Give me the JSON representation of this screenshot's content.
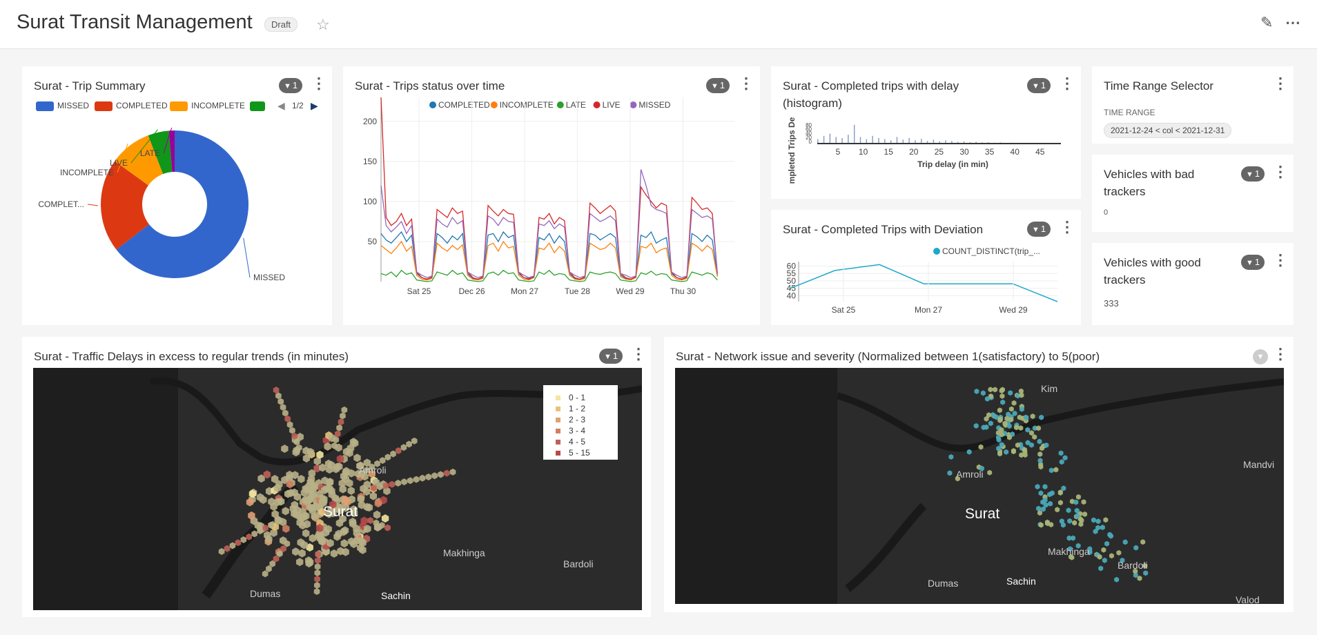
{
  "dashboard": {
    "title": "Surat Transit Management",
    "status_badge": "Draft"
  },
  "trip_summary": {
    "title": "Surat - Trip Summary",
    "filter_count": "1",
    "legend": [
      "MISSED",
      "COMPLETED",
      "INCOMPLETE"
    ],
    "legend_page": "1/2",
    "chart_data": {
      "type": "pie",
      "categories": [
        "MISSED",
        "COMPLETED",
        "INCOMPLETE",
        "LIVE",
        "LATE"
      ],
      "values": [
        63,
        20,
        9,
        4.5,
        1.2
      ],
      "slice_labels": [
        "MISSED",
        "COMPLET...",
        "INCOMPLETE",
        "LIVE",
        "LATE"
      ],
      "colors": [
        "#3366cc",
        "#dc3912",
        "#ff9900",
        "#109618",
        "#990099"
      ]
    }
  },
  "trips_status": {
    "title": "Surat - Trips status over time",
    "filter_count": "1",
    "chart_data": {
      "type": "line",
      "series": [
        {
          "name": "COMPLETED",
          "color": "#1f77b4",
          "values": [
            60,
            52,
            48,
            55,
            62,
            50,
            58,
            10,
            5,
            3,
            5,
            60,
            55,
            48,
            57,
            52,
            60,
            10,
            4,
            3,
            5,
            58,
            60,
            50,
            62,
            55,
            58,
            10,
            5,
            4,
            6,
            55,
            52,
            60,
            48,
            57,
            50,
            10,
            4,
            3,
            5,
            60,
            58,
            52,
            56,
            60,
            55,
            8,
            4,
            3,
            6,
            58,
            55,
            62,
            48,
            52,
            55,
            10,
            5,
            3,
            5,
            60,
            56,
            50,
            58,
            52,
            8
          ]
        },
        {
          "name": "INCOMPLETE",
          "color": "#ff7f0e",
          "values": [
            45,
            40,
            35,
            42,
            50,
            38,
            44,
            8,
            3,
            2,
            4,
            48,
            42,
            38,
            45,
            40,
            46,
            8,
            3,
            2,
            4,
            45,
            48,
            38,
            50,
            42,
            44,
            8,
            3,
            2,
            5,
            42,
            40,
            48,
            36,
            44,
            38,
            8,
            3,
            2,
            4,
            48,
            44,
            40,
            42,
            48,
            42,
            6,
            3,
            2,
            5,
            44,
            42,
            48,
            36,
            40,
            42,
            8,
            3,
            2,
            4,
            48,
            44,
            38,
            45,
            40,
            6
          ]
        },
        {
          "name": "LATE",
          "color": "#2ca02c",
          "values": [
            10,
            8,
            12,
            6,
            14,
            9,
            11,
            2,
            1,
            0,
            1,
            12,
            10,
            8,
            14,
            9,
            11,
            2,
            1,
            0,
            1,
            10,
            12,
            8,
            14,
            10,
            11,
            2,
            1,
            0,
            1,
            12,
            9,
            14,
            8,
            10,
            9,
            2,
            1,
            0,
            1,
            12,
            10,
            9,
            11,
            12,
            10,
            2,
            1,
            0,
            1,
            11,
            9,
            13,
            8,
            10,
            9,
            2,
            1,
            0,
            1,
            12,
            10,
            8,
            11,
            9,
            2
          ]
        },
        {
          "name": "LIVE",
          "color": "#d62728",
          "values": [
            230,
            80,
            70,
            75,
            85,
            70,
            78,
            12,
            5,
            3,
            6,
            90,
            85,
            80,
            92,
            85,
            88,
            12,
            5,
            3,
            6,
            95,
            88,
            82,
            90,
            85,
            84,
            12,
            5,
            3,
            6,
            80,
            78,
            85,
            72,
            80,
            76,
            12,
            5,
            3,
            6,
            98,
            92,
            85,
            90,
            95,
            88,
            10,
            5,
            3,
            6,
            118,
            108,
            100,
            92,
            98,
            95,
            12,
            5,
            3,
            6,
            105,
            98,
            90,
            92,
            85,
            10
          ]
        },
        {
          "name": "MISSED",
          "color": "#9467bd",
          "values": [
            120,
            70,
            62,
            68,
            75,
            60,
            70,
            12,
            8,
            5,
            7,
            78,
            72,
            68,
            80,
            72,
            76,
            12,
            8,
            5,
            7,
            82,
            78,
            70,
            80,
            75,
            74,
            12,
            8,
            5,
            7,
            72,
            70,
            76,
            66,
            72,
            68,
            12,
            8,
            5,
            7,
            85,
            80,
            75,
            78,
            82,
            76,
            10,
            8,
            5,
            7,
            140,
            120,
            95,
            90,
            88,
            85,
            12,
            8,
            5,
            7,
            90,
            85,
            80,
            82,
            78,
            10
          ]
        }
      ],
      "x_ticks": [
        "Sat 25",
        "Dec 26",
        "Mon 27",
        "Tue 28",
        "Wed 29",
        "Thu 30"
      ],
      "y_ticks": [
        50,
        100,
        150,
        200
      ],
      "ylim": [
        0,
        230
      ]
    }
  },
  "delay_histogram": {
    "title": "Surat - Completed trips with delay (histogram)",
    "filter_count": "1",
    "chart_data": {
      "type": "bar",
      "xlabel": "Trip delay (in min)",
      "ylabel": "mpleted Trips De",
      "x_ticks": [
        5,
        10,
        15,
        20,
        25,
        30,
        35,
        40,
        45
      ],
      "y_ticks": [
        0,
        20,
        40,
        60,
        80
      ],
      "values": [
        20,
        35,
        45,
        30,
        25,
        40,
        85,
        30,
        20,
        35,
        25,
        20,
        15,
        30,
        18,
        25,
        15,
        22,
        12,
        18,
        10,
        15,
        12,
        8,
        10,
        6,
        8,
        5,
        6,
        4,
        5,
        3,
        4,
        3,
        2,
        3,
        2,
        2,
        1,
        2
      ]
    }
  },
  "deviation": {
    "title": "Surat - Completed Trips with Deviation",
    "filter_count": "1",
    "chart_data": {
      "type": "line",
      "series": [
        {
          "name": "COUNT_DISTINCT(trip_...",
          "color": "#1fa8c9",
          "values": [
            45,
            57,
            61,
            48,
            48,
            48,
            36
          ]
        }
      ],
      "x_ticks": [
        "Sat 25",
        "Mon 27",
        "Wed 29"
      ],
      "y_ticks": [
        40,
        45,
        50,
        55,
        60
      ],
      "ylim": [
        36,
        63
      ]
    }
  },
  "time_range": {
    "title": "Time Range Selector",
    "label": "TIME RANGE",
    "value": "2021-12-24 < col < 2021-12-31"
  },
  "bad_trackers": {
    "title": "Vehicles with bad trackers",
    "filter_count": "1",
    "value": "0"
  },
  "good_trackers": {
    "title": "Vehicles with good trackers",
    "filter_count": "1",
    "value": "333"
  },
  "traffic_map": {
    "title": "Surat - Traffic Delays in excess to regular trends (in minutes)",
    "filter_count": "1",
    "legend": [
      {
        "label": "0 - 1",
        "color": "#f2e6a0"
      },
      {
        "label": "1 - 2",
        "color": "#e8c27a"
      },
      {
        "label": "2 - 3",
        "color": "#e0a072"
      },
      {
        "label": "3 - 4",
        "color": "#d08060"
      },
      {
        "label": "4 - 5",
        "color": "#c06058"
      },
      {
        "label": "5 - 15",
        "color": "#b84a4a"
      }
    ],
    "places": {
      "surat": "Surat",
      "amroli": "Amroli",
      "makhinga": "Makhinga",
      "bardoli": "Bardoli",
      "dumas": "Dumas",
      "sachin": "Sachin"
    }
  },
  "network_map": {
    "title": "Surat - Network issue and severity (Normalized between 1(satisfactory) to 5(poor)",
    "places": {
      "surat": "Surat",
      "amroli": "Amroli",
      "makhinga": "Makhinga",
      "bardoli": "Bardoli",
      "dumas": "Dumas",
      "sachin": "Sachin",
      "mandvi": "Mandvi",
      "kim": "Kim",
      "valod": "Valod"
    }
  }
}
